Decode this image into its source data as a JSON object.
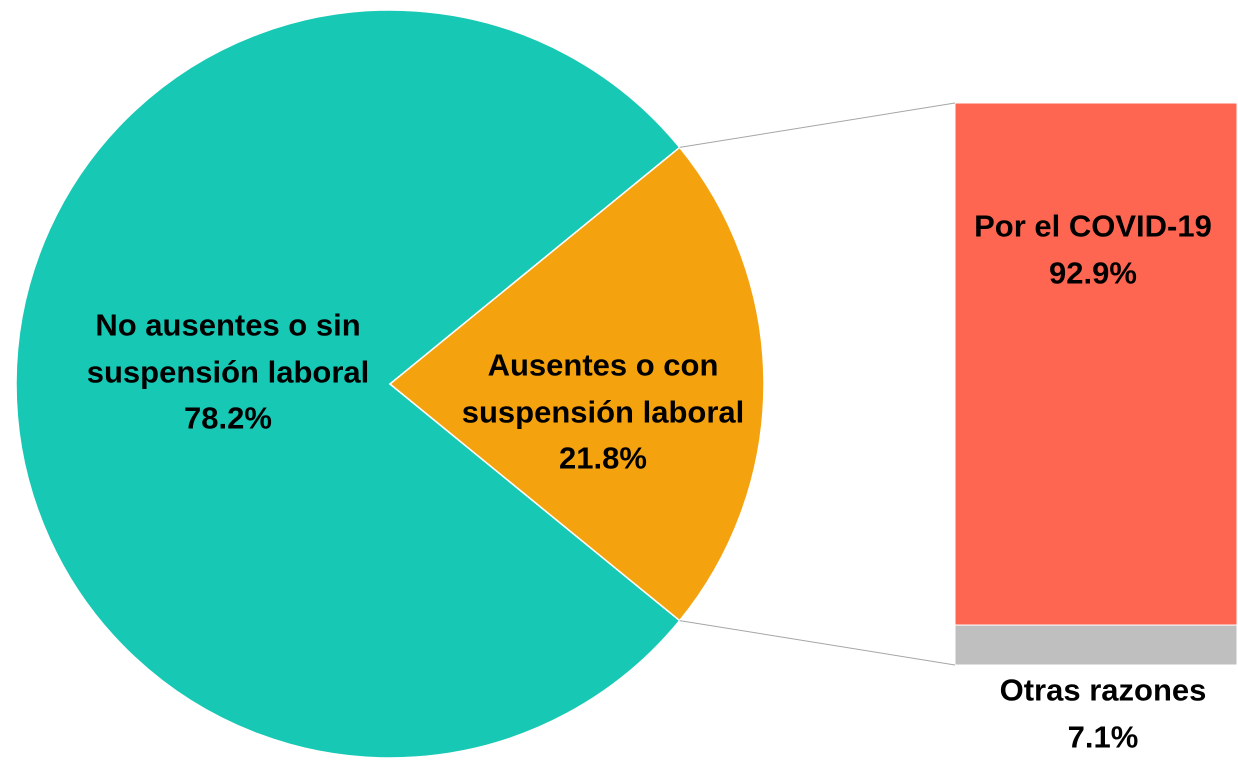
{
  "chart_data": [
    {
      "type": "pie",
      "categories": [
        "No ausentes o sin suspensión laboral",
        "Ausentes o con suspensión laboral"
      ],
      "values": [
        78.2,
        21.8
      ],
      "value_labels": [
        "78.2%",
        "21.8%"
      ],
      "colors": [
        "#17c8b4",
        "#f5a20f"
      ]
    },
    {
      "type": "bar",
      "categories": [
        "Por el COVID-19",
        "Otras razones"
      ],
      "values": [
        92.9,
        7.1
      ],
      "value_labels": [
        "92.9%",
        "7.1%"
      ],
      "colors": [
        "#ff6652",
        "#bfbfbf"
      ]
    }
  ]
}
